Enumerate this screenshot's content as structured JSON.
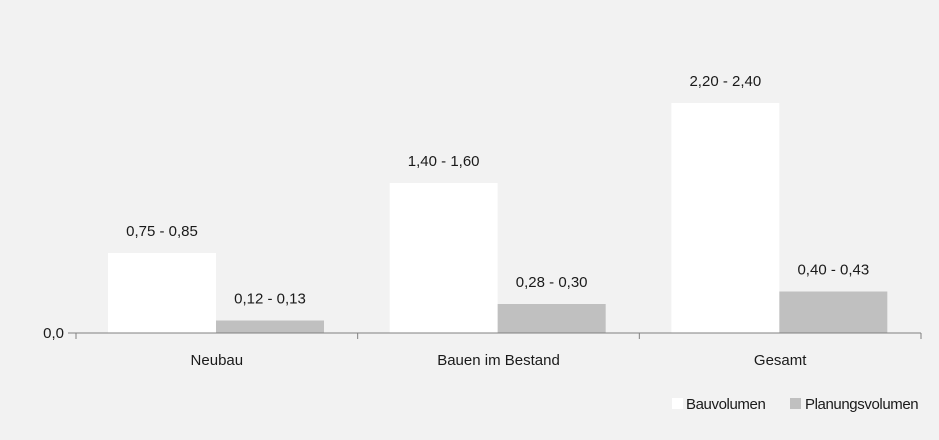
{
  "chart_data": {
    "type": "bar",
    "title": "",
    "xlabel": "",
    "ylabel": "",
    "categories": [
      "Neubau",
      "Bauen im Bestand",
      "Gesamt"
    ],
    "ylim": [
      0,
      2.76
    ],
    "y_ticks": [
      {
        "value": 0,
        "label": "0,0"
      }
    ],
    "legend_position": "bottom-right",
    "grid": false,
    "series": [
      {
        "name": "Bauvolumen",
        "color": "#ffffff",
        "values": [
          0.8,
          1.5,
          2.3
        ],
        "labels": [
          "0,75 - 0,85",
          "1,40 - 1,60",
          "2,20 - 2,40"
        ]
      },
      {
        "name": "Planungsvolumen",
        "color": "#c0c0c0",
        "values": [
          0.125,
          0.29,
          0.415
        ],
        "labels": [
          "0,12 - 0,13",
          "0,28 - 0,30",
          "0,40 - 0,43"
        ]
      }
    ]
  }
}
